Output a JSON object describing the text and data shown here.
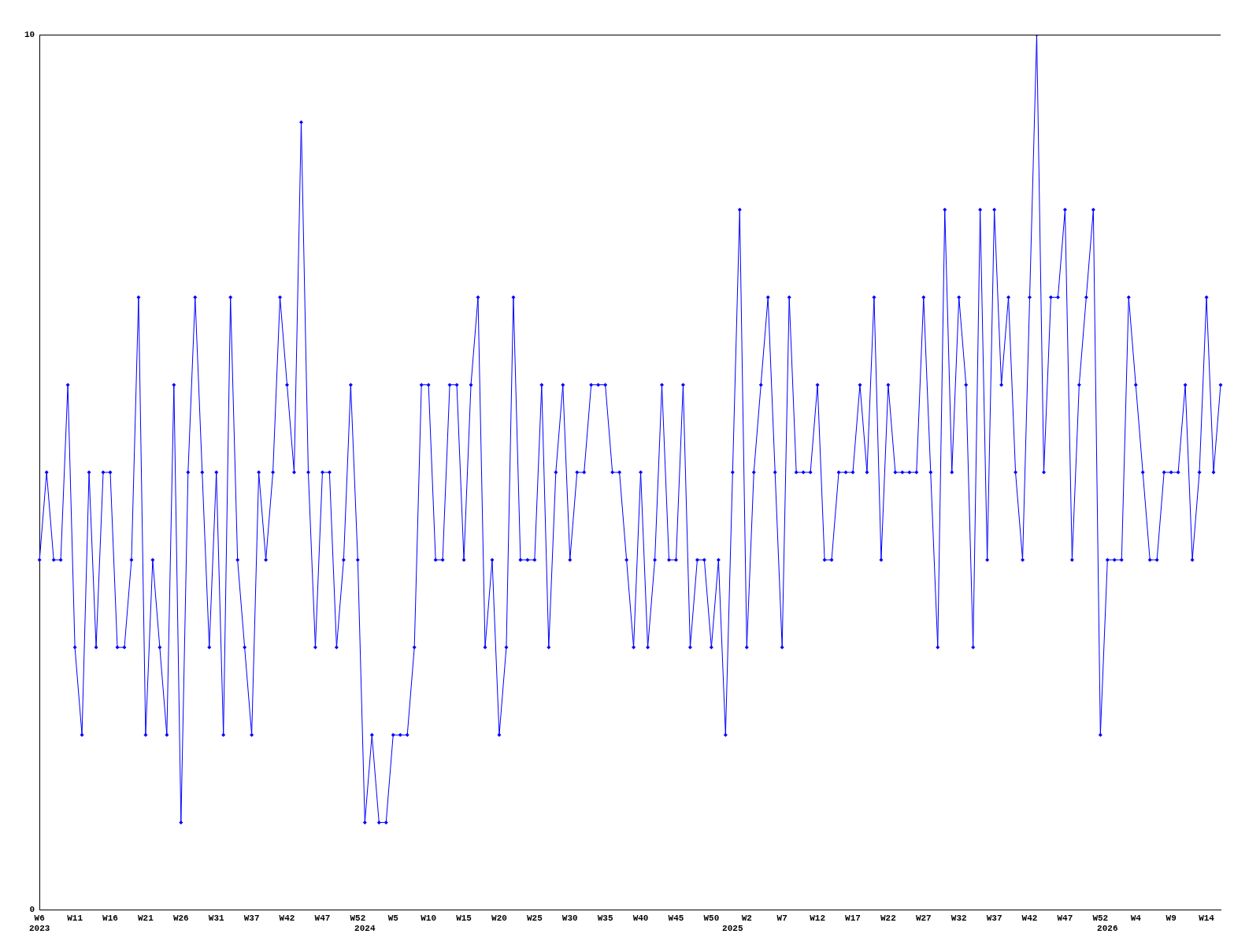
{
  "chart_data": {
    "type": "line",
    "categories": [
      "W6\n2023",
      null,
      null,
      null,
      null,
      "W11",
      null,
      null,
      null,
      null,
      "W16",
      null,
      null,
      null,
      null,
      "W21",
      null,
      null,
      null,
      null,
      "W26",
      null,
      null,
      null,
      null,
      "W31",
      null,
      null,
      null,
      null,
      "W37",
      null,
      null,
      null,
      null,
      "W42",
      null,
      null,
      null,
      null,
      "W47",
      null,
      null,
      null,
      null,
      "W52",
      "\n2024",
      null,
      null,
      null,
      "W5",
      null,
      null,
      null,
      null,
      "W10",
      null,
      null,
      null,
      null,
      "W15",
      null,
      null,
      null,
      null,
      "W20",
      null,
      null,
      null,
      null,
      "W25",
      null,
      null,
      null,
      null,
      "W30",
      null,
      null,
      null,
      null,
      "W35",
      null,
      null,
      null,
      null,
      "W40",
      null,
      null,
      null,
      null,
      "W45",
      null,
      null,
      null,
      null,
      "W50",
      null,
      null,
      "\n2025",
      null,
      "W2",
      null,
      null,
      null,
      null,
      "W7",
      null,
      null,
      null,
      null,
      "W12",
      null,
      null,
      null,
      null,
      "W17",
      null,
      null,
      null,
      null,
      "W22",
      null,
      null,
      null,
      null,
      "W27",
      null,
      null,
      null,
      null,
      "W32",
      null,
      null,
      null,
      null,
      "W37",
      null,
      null,
      null,
      null,
      "W42",
      null,
      null,
      null,
      null,
      "W47",
      null,
      null,
      null,
      null,
      "W52",
      "\n2026",
      null,
      null,
      null,
      "W4",
      null,
      null,
      null,
      null,
      "W9",
      null,
      null,
      null,
      null,
      "W14",
      null,
      null
    ],
    "series": [
      {
        "color": "#0000ff",
        "values": [
          4,
          5,
          4,
          4,
          6,
          3,
          2,
          5,
          3,
          5,
          5,
          3,
          3,
          4,
          7,
          2,
          4,
          3,
          2,
          6,
          1,
          5,
          7,
          5,
          3,
          5,
          2,
          7,
          4,
          3,
          2,
          5,
          4,
          5,
          7,
          6,
          5,
          9,
          5,
          3,
          5,
          5,
          3,
          4,
          6,
          4,
          1,
          2,
          1,
          1,
          2,
          2,
          2,
          3,
          6,
          6,
          4,
          4,
          6,
          6,
          4,
          6,
          7,
          3,
          4,
          2,
          3,
          7,
          4,
          4,
          4,
          6,
          3,
          5,
          6,
          4,
          5,
          5,
          6,
          6,
          6,
          5,
          5,
          4,
          3,
          5,
          3,
          4,
          6,
          4,
          4,
          6,
          3,
          4,
          4,
          3,
          4,
          2,
          5,
          8,
          3,
          5,
          6,
          7,
          5,
          3,
          7,
          5,
          5,
          5,
          6,
          4,
          4,
          5,
          5,
          5,
          6,
          5,
          7,
          4,
          6,
          5,
          5,
          5,
          5,
          7,
          5,
          3,
          8,
          5,
          7,
          6,
          3,
          8,
          4,
          8,
          6,
          7,
          5,
          4,
          7,
          10,
          5,
          7,
          7,
          8,
          4,
          6,
          7,
          8,
          2,
          4,
          4,
          4,
          7,
          6,
          5,
          4,
          4,
          5,
          5,
          5,
          6,
          4,
          5,
          7,
          5,
          6
        ]
      }
    ],
    "ylim": [
      0,
      10
    ],
    "yticks": [
      0,
      10
    ],
    "marker": "diamond",
    "line_style": "solid"
  }
}
